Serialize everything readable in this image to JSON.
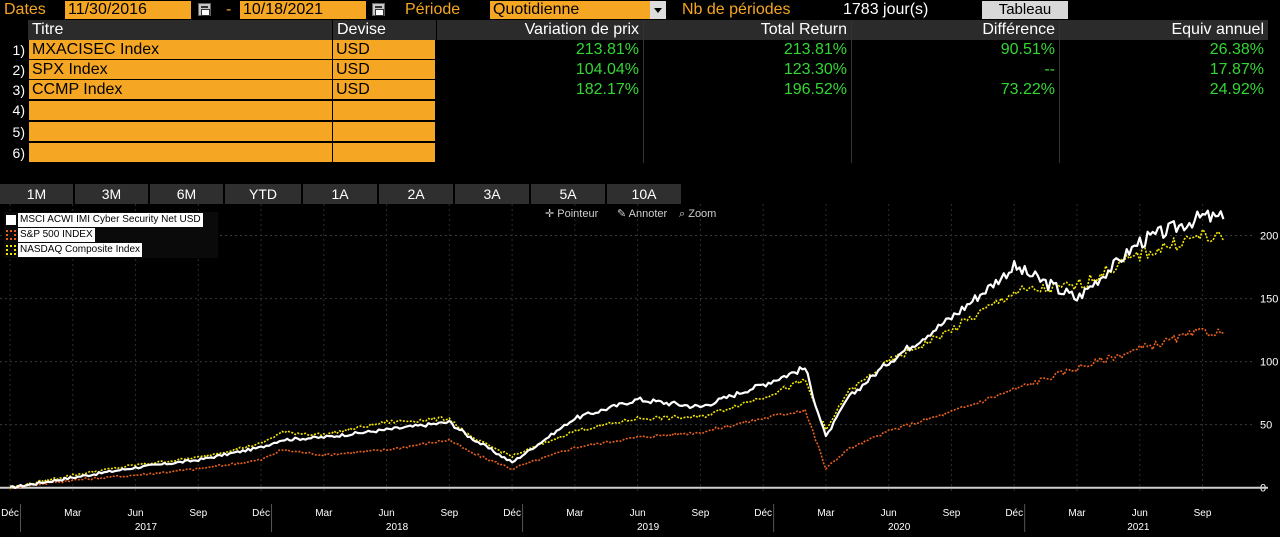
{
  "toolbar": {
    "dates_label": "Dates",
    "start_date": "11/30/2016",
    "dash": "-",
    "end_date": "10/18/2021",
    "period_label": "Période",
    "period_value": "Quotidienne",
    "nb_periods_label": "Nb de périodes",
    "nb_periods_value": "1783 jour(s)",
    "tableau_button": "Tableau"
  },
  "table": {
    "headers": {
      "titre": "Titre",
      "devise": "Devise",
      "variation": "Variation de prix",
      "total_return": "Total Return",
      "difference": "Différence",
      "equiv": "Equiv annuel"
    },
    "rows": [
      {
        "num": "1)",
        "titre": "MXACISEC Index",
        "devise": "USD",
        "variation": "213.81%",
        "total_return": "213.81%",
        "difference": "90.51%",
        "equiv": "26.38%"
      },
      {
        "num": "2)",
        "titre": "SPX Index",
        "devise": "USD",
        "variation": "104.04%",
        "total_return": "123.30%",
        "difference": "--",
        "equiv": "17.87%"
      },
      {
        "num": "3)",
        "titre": "CCMP Index",
        "devise": "USD",
        "variation": "182.17%",
        "total_return": "196.52%",
        "difference": "73.22%",
        "equiv": "24.92%"
      },
      {
        "num": "4)",
        "titre": "",
        "devise": "",
        "variation": "",
        "total_return": "",
        "difference": "",
        "equiv": ""
      },
      {
        "num": "5)",
        "titre": "",
        "devise": "",
        "variation": "",
        "total_return": "",
        "difference": "",
        "equiv": ""
      },
      {
        "num": "6)",
        "titre": "",
        "devise": "",
        "variation": "",
        "total_return": "",
        "difference": "",
        "equiv": ""
      }
    ]
  },
  "periods": [
    "1M",
    "3M",
    "6M",
    "YTD",
    "1A",
    "2A",
    "3A",
    "5A",
    "10A"
  ],
  "tools": {
    "pointeur": "Pointeur",
    "annoter": "Annoter",
    "zoom": "Zoom"
  },
  "colors": {
    "accent": "#f5a623",
    "positive": "#34d634",
    "msci": "#ffffff",
    "spx": "#e8601c",
    "nasdaq": "#f2e600"
  },
  "chart_data": {
    "type": "line",
    "ylim": [
      -5,
      225
    ],
    "yticks": [
      0,
      50,
      100,
      150,
      200
    ],
    "grid": true,
    "legend_position": "top-left",
    "month_ticks": [
      "Déc",
      "Mar",
      "Jun",
      "Sep",
      "Déc",
      "Mar",
      "Jun",
      "Sep",
      "Déc",
      "Mar",
      "Jun",
      "Sep",
      "Déc",
      "Mar",
      "Jun",
      "Sep",
      "Déc",
      "Mar",
      "Jun",
      "Sep"
    ],
    "year_labels": [
      "2017",
      "2018",
      "2019",
      "2020",
      "2021"
    ],
    "x": [
      "2016-12",
      "2017-03",
      "2017-06",
      "2017-09",
      "2017-12",
      "2018-01",
      "2018-03",
      "2018-06",
      "2018-09",
      "2018-10",
      "2018-12",
      "2019-03",
      "2019-06",
      "2019-09",
      "2019-12",
      "2020-02",
      "2020-03",
      "2020-04",
      "2020-06",
      "2020-09",
      "2020-12",
      "2021-03",
      "2021-06",
      "2021-09",
      "2021-10"
    ],
    "series": [
      {
        "name": "MSCI ACWI IMI Cyber Security Net USD",
        "color": "#ffffff",
        "values": [
          0,
          8,
          16,
          22,
          32,
          38,
          40,
          46,
          52,
          40,
          20,
          55,
          70,
          64,
          82,
          95,
          40,
          70,
          100,
          135,
          175,
          150,
          195,
          215,
          213
        ]
      },
      {
        "name": "S&P 500 INDEX",
        "color": "#e8601c",
        "values": [
          0,
          6,
          10,
          15,
          22,
          30,
          26,
          30,
          38,
          28,
          15,
          32,
          40,
          44,
          55,
          62,
          15,
          30,
          45,
          60,
          78,
          95,
          110,
          124,
          123
        ]
      },
      {
        "name": "NASDAQ Composite Index",
        "color": "#f2e600",
        "values": [
          0,
          10,
          18,
          24,
          35,
          44,
          42,
          52,
          55,
          40,
          25,
          45,
          55,
          56,
          72,
          85,
          45,
          75,
          100,
          125,
          155,
          160,
          185,
          200,
          196
        ]
      }
    ]
  }
}
